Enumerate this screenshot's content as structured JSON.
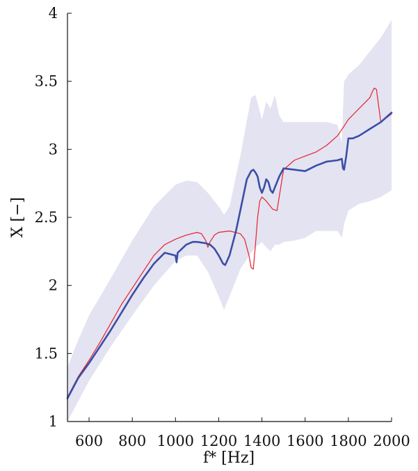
{
  "chart_data": {
    "type": "line",
    "title": "",
    "xlabel": "f* [Hz]",
    "ylabel": "X [−]",
    "xlim": [
      500,
      2000
    ],
    "ylim": [
      1,
      4
    ],
    "x_ticks": [
      600,
      800,
      1000,
      1200,
      1400,
      1600,
      1800,
      2000
    ],
    "y_ticks": [
      1,
      1.5,
      2,
      2.5,
      3,
      3.5,
      4
    ],
    "x_tick_labels": [
      "600",
      "800",
      "1000",
      "1200",
      "1400",
      "1600",
      "1800",
      "2000"
    ],
    "y_tick_labels": [
      "1",
      "1.5",
      "2",
      "2.5",
      "3",
      "3.5",
      "4"
    ],
    "grid": false,
    "legend": "none",
    "colors": {
      "band": "#e3e3f1",
      "blue": "#3a4ea6",
      "red": "#e8202a"
    },
    "band": {
      "x": [
        500,
        550,
        600,
        700,
        800,
        900,
        1000,
        1050,
        1100,
        1150,
        1200,
        1225,
        1250,
        1300,
        1350,
        1370,
        1400,
        1420,
        1440,
        1460,
        1480,
        1500,
        1550,
        1600,
        1650,
        1700,
        1750,
        1770,
        1780,
        1790,
        1800,
        1850,
        1900,
        1950,
        2000
      ],
      "upper": [
        1.4,
        1.6,
        1.78,
        2.05,
        2.33,
        2.58,
        2.74,
        2.77,
        2.76,
        2.68,
        2.58,
        2.52,
        2.58,
        2.95,
        3.38,
        3.4,
        3.22,
        3.35,
        3.3,
        3.4,
        3.25,
        3.2,
        3.2,
        3.2,
        3.2,
        3.2,
        3.18,
        3.05,
        3.5,
        3.52,
        3.55,
        3.62,
        3.72,
        3.82,
        3.95
      ],
      "lower": [
        1.0,
        1.15,
        1.3,
        1.55,
        1.78,
        2.0,
        2.18,
        2.22,
        2.22,
        2.1,
        1.92,
        1.82,
        1.92,
        2.12,
        2.24,
        2.28,
        2.32,
        2.28,
        2.25,
        2.3,
        2.3,
        2.32,
        2.33,
        2.35,
        2.4,
        2.4,
        2.4,
        2.35,
        2.45,
        2.5,
        2.55,
        2.6,
        2.62,
        2.65,
        2.7
      ]
    },
    "series": [
      {
        "color": "blue",
        "x": [
          500,
          550,
          600,
          650,
          700,
          750,
          800,
          850,
          900,
          950,
          1000,
          1005,
          1010,
          1050,
          1080,
          1100,
          1140,
          1160,
          1180,
          1200,
          1220,
          1230,
          1250,
          1280,
          1300,
          1330,
          1350,
          1360,
          1370,
          1380,
          1390,
          1400,
          1410,
          1420,
          1430,
          1440,
          1450,
          1460,
          1480,
          1500,
          1550,
          1600,
          1650,
          1700,
          1750,
          1770,
          1775,
          1780,
          1790,
          1800,
          1820,
          1850,
          1900,
          1950,
          2000
        ],
        "y": [
          1.17,
          1.32,
          1.43,
          1.55,
          1.67,
          1.8,
          1.93,
          2.05,
          2.16,
          2.24,
          2.22,
          2.17,
          2.24,
          2.3,
          2.32,
          2.32,
          2.31,
          2.3,
          2.27,
          2.22,
          2.16,
          2.15,
          2.22,
          2.4,
          2.55,
          2.78,
          2.84,
          2.85,
          2.83,
          2.8,
          2.72,
          2.68,
          2.72,
          2.78,
          2.76,
          2.7,
          2.68,
          2.72,
          2.8,
          2.86,
          2.85,
          2.84,
          2.88,
          2.91,
          2.92,
          2.93,
          2.86,
          2.85,
          2.95,
          3.08,
          3.08,
          3.1,
          3.15,
          3.2,
          3.27
        ]
      },
      {
        "color": "red",
        "x": [
          500,
          550,
          600,
          650,
          700,
          750,
          800,
          850,
          900,
          950,
          1000,
          1050,
          1100,
          1120,
          1140,
          1150,
          1160,
          1180,
          1200,
          1250,
          1300,
          1320,
          1340,
          1350,
          1360,
          1370,
          1380,
          1390,
          1400,
          1420,
          1450,
          1470,
          1500,
          1550,
          1600,
          1650,
          1700,
          1750,
          1780,
          1800,
          1850,
          1900,
          1910,
          1920,
          1930,
          1940,
          1950,
          2000
        ],
        "y": [
          1.18,
          1.33,
          1.45,
          1.58,
          1.72,
          1.86,
          1.98,
          2.1,
          2.22,
          2.3,
          2.34,
          2.37,
          2.39,
          2.38,
          2.33,
          2.28,
          2.32,
          2.37,
          2.39,
          2.4,
          2.38,
          2.34,
          2.22,
          2.13,
          2.12,
          2.3,
          2.5,
          2.62,
          2.65,
          2.62,
          2.56,
          2.55,
          2.85,
          2.92,
          2.95,
          2.98,
          3.03,
          3.1,
          3.17,
          3.22,
          3.3,
          3.38,
          3.42,
          3.45,
          3.44,
          3.32,
          3.2,
          3.26
        ]
      }
    ]
  }
}
